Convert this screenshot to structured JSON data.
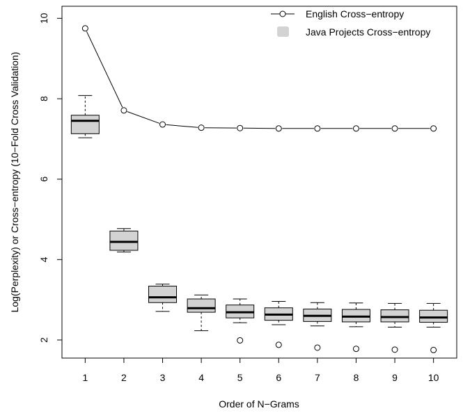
{
  "chart_data": {
    "type": "line+boxplot",
    "xlabel": "Order of N−Grams",
    "ylabel": "Log(Perplexity) or Cross−entropy (10−Fold Cross Validation)",
    "xlim": [
      0.4,
      10.6
    ],
    "ylim": [
      1.55,
      10.3
    ],
    "x_ticks": [
      1,
      2,
      3,
      4,
      5,
      6,
      7,
      8,
      9,
      10
    ],
    "x_tick_labels": [
      "1",
      "2",
      "3",
      "4",
      "5",
      "6",
      "7",
      "8",
      "9",
      "10"
    ],
    "y_ticks": [
      2,
      4,
      6,
      8,
      10
    ],
    "y_tick_labels": [
      "2",
      "4",
      "6",
      "8",
      "10"
    ],
    "grid": false,
    "legend_position": "top-right",
    "legend": [
      {
        "label": "English Cross−entropy",
        "symbol": "line-circle"
      },
      {
        "label": "Java Projects Cross−entropy",
        "symbol": "filled-square"
      }
    ],
    "series": [
      {
        "name": "English Cross−entropy",
        "type": "line",
        "x": [
          1,
          2,
          3,
          4,
          5,
          6,
          7,
          8,
          9,
          10
        ],
        "values": [
          9.75,
          7.71,
          7.36,
          7.28,
          7.27,
          7.26,
          7.26,
          7.26,
          7.26,
          7.26
        ]
      },
      {
        "name": "Java Projects Cross−entropy",
        "type": "boxplot",
        "color": "#d3d3d3",
        "boxes": [
          {
            "x": 1,
            "whisker_low": 7.03,
            "q1": 7.13,
            "median": 7.45,
            "q3": 7.59,
            "whisker_high": 8.08,
            "outliers": []
          },
          {
            "x": 2,
            "whisker_low": 4.19,
            "q1": 4.23,
            "median": 4.44,
            "q3": 4.71,
            "whisker_high": 4.77,
            "outliers": []
          },
          {
            "x": 3,
            "whisker_low": 2.71,
            "q1": 2.93,
            "median": 3.06,
            "q3": 3.34,
            "whisker_high": 3.39,
            "outliers": []
          },
          {
            "x": 4,
            "whisker_low": 2.23,
            "q1": 2.69,
            "median": 2.79,
            "q3": 3.02,
            "whisker_high": 3.12,
            "outliers": []
          },
          {
            "x": 5,
            "whisker_low": 2.43,
            "q1": 2.55,
            "median": 2.69,
            "q3": 2.87,
            "whisker_high": 3.02,
            "outliers": [
              1.99
            ]
          },
          {
            "x": 6,
            "whisker_low": 2.38,
            "q1": 2.49,
            "median": 2.63,
            "q3": 2.8,
            "whisker_high": 2.96,
            "outliers": [
              1.88
            ]
          },
          {
            "x": 7,
            "whisker_low": 2.35,
            "q1": 2.46,
            "median": 2.6,
            "q3": 2.77,
            "whisker_high": 2.93,
            "outliers": [
              1.81
            ]
          },
          {
            "x": 8,
            "whisker_low": 2.33,
            "q1": 2.45,
            "median": 2.58,
            "q3": 2.76,
            "whisker_high": 2.92,
            "outliers": [
              1.78
            ]
          },
          {
            "x": 9,
            "whisker_low": 2.32,
            "q1": 2.45,
            "median": 2.57,
            "q3": 2.75,
            "whisker_high": 2.91,
            "outliers": [
              1.76
            ]
          },
          {
            "x": 10,
            "whisker_low": 2.32,
            "q1": 2.44,
            "median": 2.56,
            "q3": 2.74,
            "whisker_high": 2.91,
            "outliers": [
              1.75
            ]
          }
        ]
      }
    ]
  }
}
